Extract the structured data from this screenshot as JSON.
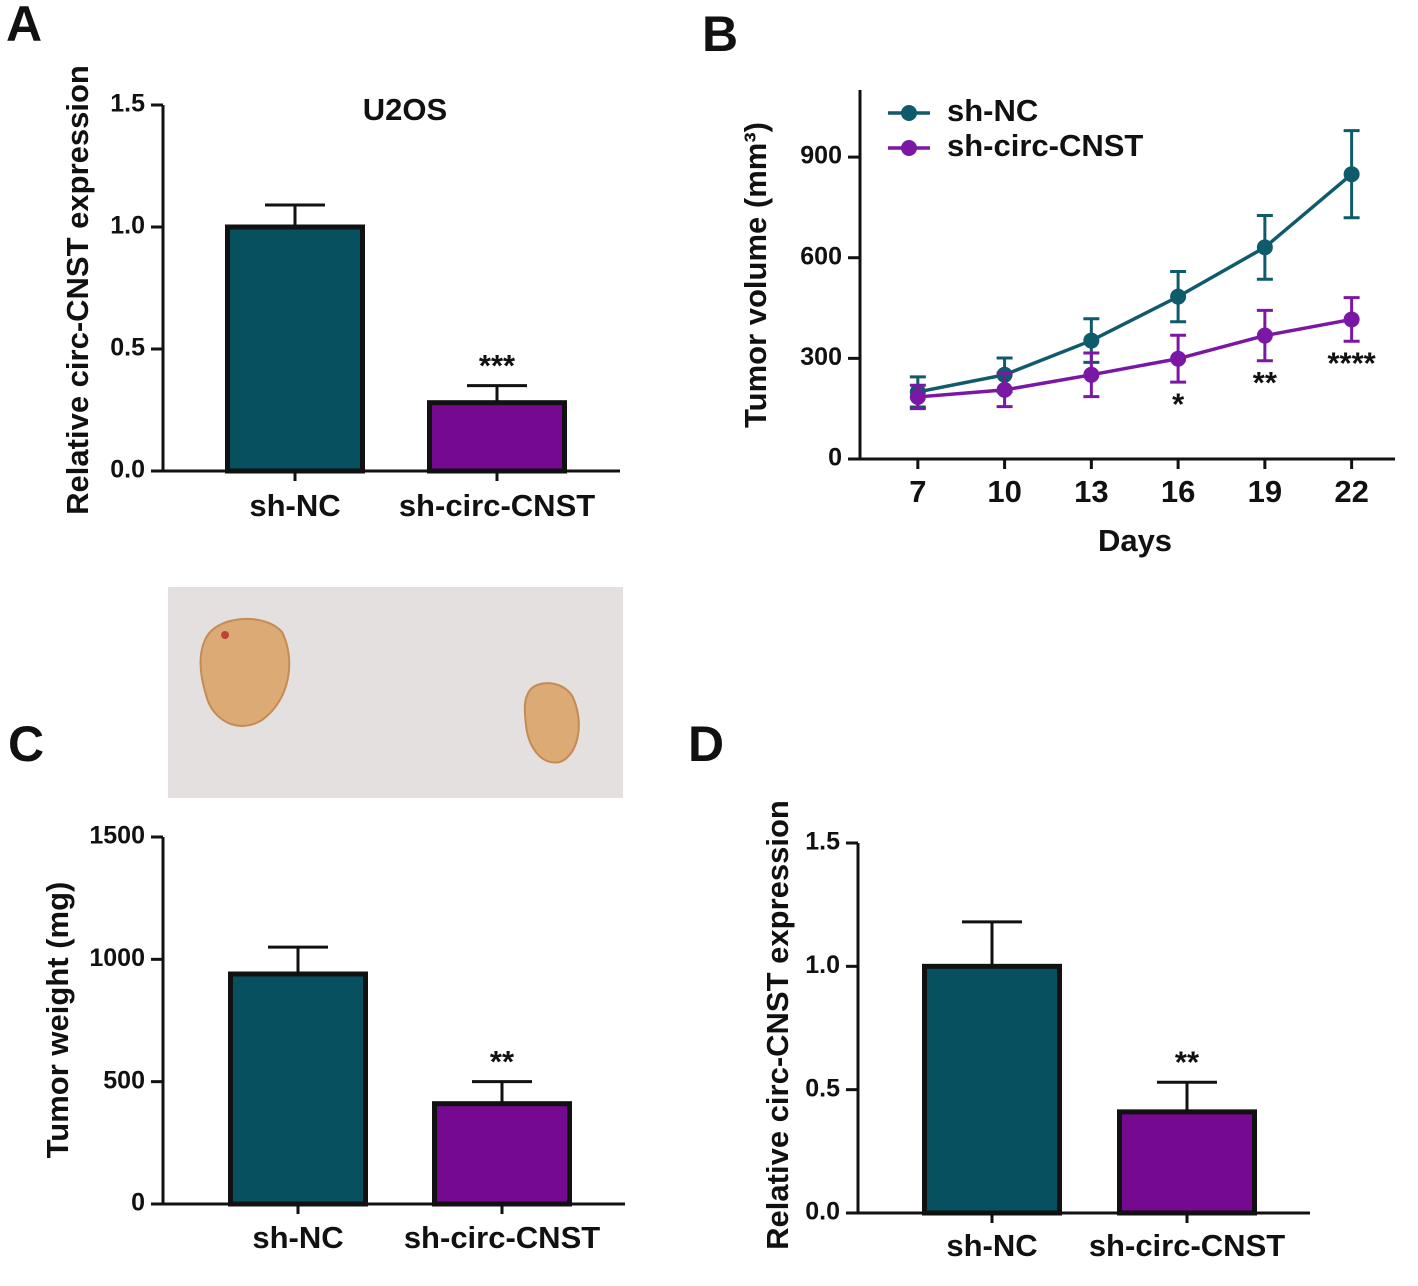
{
  "chart_data": [
    {
      "type": "bar",
      "panel": "A",
      "title": "U2OS",
      "y_label": "Relative circ-CNST expression",
      "categories": [
        "sh-NC",
        "sh-circ-CNST"
      ],
      "values": [
        1.0,
        0.28
      ],
      "errors": [
        0.09,
        0.07
      ],
      "colors": [
        "#06505f",
        "#750a90"
      ],
      "significance": [
        null,
        "***"
      ],
      "ylim": [
        0,
        1.5
      ],
      "yticks": [
        {
          "value": 0,
          "label": "0.0"
        },
        0.5,
        {
          "value": 1,
          "label": "1.0"
        },
        1.5
      ]
    },
    {
      "type": "line",
      "panel": "B",
      "x_label": "Days",
      "y_label": "Tumor volume (mm³)",
      "x": [
        7,
        10,
        13,
        16,
        19,
        22
      ],
      "series": [
        {
          "name": "sh-NC",
          "color": "#0f5a6b",
          "values": [
            200,
            251,
            353,
            484,
            631,
            849
          ],
          "errors": [
            45,
            50,
            65,
            75,
            95,
            130
          ]
        },
        {
          "name": "sh-circ-CNST",
          "color": "#7b17a5",
          "values": [
            185,
            206,
            251,
            299,
            368,
            416
          ],
          "errors": [
            35,
            50,
            65,
            70,
            75,
            65
          ]
        }
      ],
      "significance": [
        null,
        null,
        null,
        "*",
        "**",
        "****"
      ],
      "xlim": [
        5,
        23.5
      ],
      "xticks": [
        7,
        10,
        13,
        16,
        19,
        22
      ],
      "ylim": [
        0,
        1100
      ],
      "yticks": [
        0,
        300,
        600,
        900
      ],
      "legend": "top-left"
    },
    {
      "type": "bar",
      "panel": "C",
      "y_label": "Tumor weight (mg)",
      "categories": [
        "sh-NC",
        "sh-circ-CNST"
      ],
      "values": [
        940,
        410
      ],
      "errors": [
        110,
        90
      ],
      "colors": [
        "#06505f",
        "#750a90"
      ],
      "significance": [
        null,
        "**"
      ],
      "ylim": [
        0,
        1500
      ],
      "yticks": [
        0,
        500,
        1000,
        1500
      ]
    },
    {
      "type": "bar",
      "panel": "D",
      "y_label": "Relative circ-CNST expression",
      "categories": [
        "sh-NC",
        "sh-circ-CNST"
      ],
      "values": [
        1.0,
        0.41
      ],
      "errors": [
        0.18,
        0.12
      ],
      "colors": [
        "#06505f",
        "#750a90"
      ],
      "significance": [
        null,
        "**"
      ],
      "ylim": [
        0,
        1.5
      ],
      "yticks": [
        {
          "value": 0,
          "label": "0.0"
        },
        0.5,
        {
          "value": 1,
          "label": "1.0"
        },
        1.5
      ]
    }
  ]
}
